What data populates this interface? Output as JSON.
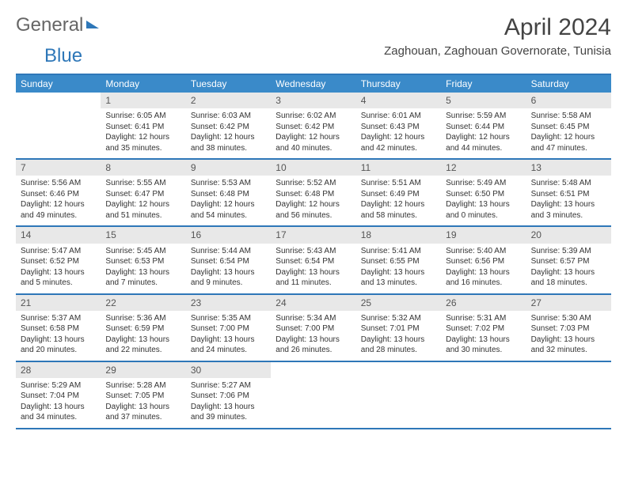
{
  "logo": {
    "part1": "General",
    "part2": "Blue"
  },
  "title": "April 2024",
  "location": "Zaghouan, Zaghouan Governorate, Tunisia",
  "colors": {
    "accent": "#2e77b8",
    "header_bg": "#3a8ac9",
    "header_text": "#ffffff",
    "daynum_bg": "#e8e8e8",
    "text": "#333333"
  },
  "day_names": [
    "Sunday",
    "Monday",
    "Tuesday",
    "Wednesday",
    "Thursday",
    "Friday",
    "Saturday"
  ],
  "weeks": [
    [
      null,
      {
        "n": "1",
        "sr": "6:05 AM",
        "ss": "6:41 PM",
        "dl": "12 hours and 35 minutes."
      },
      {
        "n": "2",
        "sr": "6:03 AM",
        "ss": "6:42 PM",
        "dl": "12 hours and 38 minutes."
      },
      {
        "n": "3",
        "sr": "6:02 AM",
        "ss": "6:42 PM",
        "dl": "12 hours and 40 minutes."
      },
      {
        "n": "4",
        "sr": "6:01 AM",
        "ss": "6:43 PM",
        "dl": "12 hours and 42 minutes."
      },
      {
        "n": "5",
        "sr": "5:59 AM",
        "ss": "6:44 PM",
        "dl": "12 hours and 44 minutes."
      },
      {
        "n": "6",
        "sr": "5:58 AM",
        "ss": "6:45 PM",
        "dl": "12 hours and 47 minutes."
      }
    ],
    [
      {
        "n": "7",
        "sr": "5:56 AM",
        "ss": "6:46 PM",
        "dl": "12 hours and 49 minutes."
      },
      {
        "n": "8",
        "sr": "5:55 AM",
        "ss": "6:47 PM",
        "dl": "12 hours and 51 minutes."
      },
      {
        "n": "9",
        "sr": "5:53 AM",
        "ss": "6:48 PM",
        "dl": "12 hours and 54 minutes."
      },
      {
        "n": "10",
        "sr": "5:52 AM",
        "ss": "6:48 PM",
        "dl": "12 hours and 56 minutes."
      },
      {
        "n": "11",
        "sr": "5:51 AM",
        "ss": "6:49 PM",
        "dl": "12 hours and 58 minutes."
      },
      {
        "n": "12",
        "sr": "5:49 AM",
        "ss": "6:50 PM",
        "dl": "13 hours and 0 minutes."
      },
      {
        "n": "13",
        "sr": "5:48 AM",
        "ss": "6:51 PM",
        "dl": "13 hours and 3 minutes."
      }
    ],
    [
      {
        "n": "14",
        "sr": "5:47 AM",
        "ss": "6:52 PM",
        "dl": "13 hours and 5 minutes."
      },
      {
        "n": "15",
        "sr": "5:45 AM",
        "ss": "6:53 PM",
        "dl": "13 hours and 7 minutes."
      },
      {
        "n": "16",
        "sr": "5:44 AM",
        "ss": "6:54 PM",
        "dl": "13 hours and 9 minutes."
      },
      {
        "n": "17",
        "sr": "5:43 AM",
        "ss": "6:54 PM",
        "dl": "13 hours and 11 minutes."
      },
      {
        "n": "18",
        "sr": "5:41 AM",
        "ss": "6:55 PM",
        "dl": "13 hours and 13 minutes."
      },
      {
        "n": "19",
        "sr": "5:40 AM",
        "ss": "6:56 PM",
        "dl": "13 hours and 16 minutes."
      },
      {
        "n": "20",
        "sr": "5:39 AM",
        "ss": "6:57 PM",
        "dl": "13 hours and 18 minutes."
      }
    ],
    [
      {
        "n": "21",
        "sr": "5:37 AM",
        "ss": "6:58 PM",
        "dl": "13 hours and 20 minutes."
      },
      {
        "n": "22",
        "sr": "5:36 AM",
        "ss": "6:59 PM",
        "dl": "13 hours and 22 minutes."
      },
      {
        "n": "23",
        "sr": "5:35 AM",
        "ss": "7:00 PM",
        "dl": "13 hours and 24 minutes."
      },
      {
        "n": "24",
        "sr": "5:34 AM",
        "ss": "7:00 PM",
        "dl": "13 hours and 26 minutes."
      },
      {
        "n": "25",
        "sr": "5:32 AM",
        "ss": "7:01 PM",
        "dl": "13 hours and 28 minutes."
      },
      {
        "n": "26",
        "sr": "5:31 AM",
        "ss": "7:02 PM",
        "dl": "13 hours and 30 minutes."
      },
      {
        "n": "27",
        "sr": "5:30 AM",
        "ss": "7:03 PM",
        "dl": "13 hours and 32 minutes."
      }
    ],
    [
      {
        "n": "28",
        "sr": "5:29 AM",
        "ss": "7:04 PM",
        "dl": "13 hours and 34 minutes."
      },
      {
        "n": "29",
        "sr": "5:28 AM",
        "ss": "7:05 PM",
        "dl": "13 hours and 37 minutes."
      },
      {
        "n": "30",
        "sr": "5:27 AM",
        "ss": "7:06 PM",
        "dl": "13 hours and 39 minutes."
      },
      null,
      null,
      null,
      null
    ]
  ],
  "labels": {
    "sunrise": "Sunrise:",
    "sunset": "Sunset:",
    "daylight": "Daylight:"
  }
}
